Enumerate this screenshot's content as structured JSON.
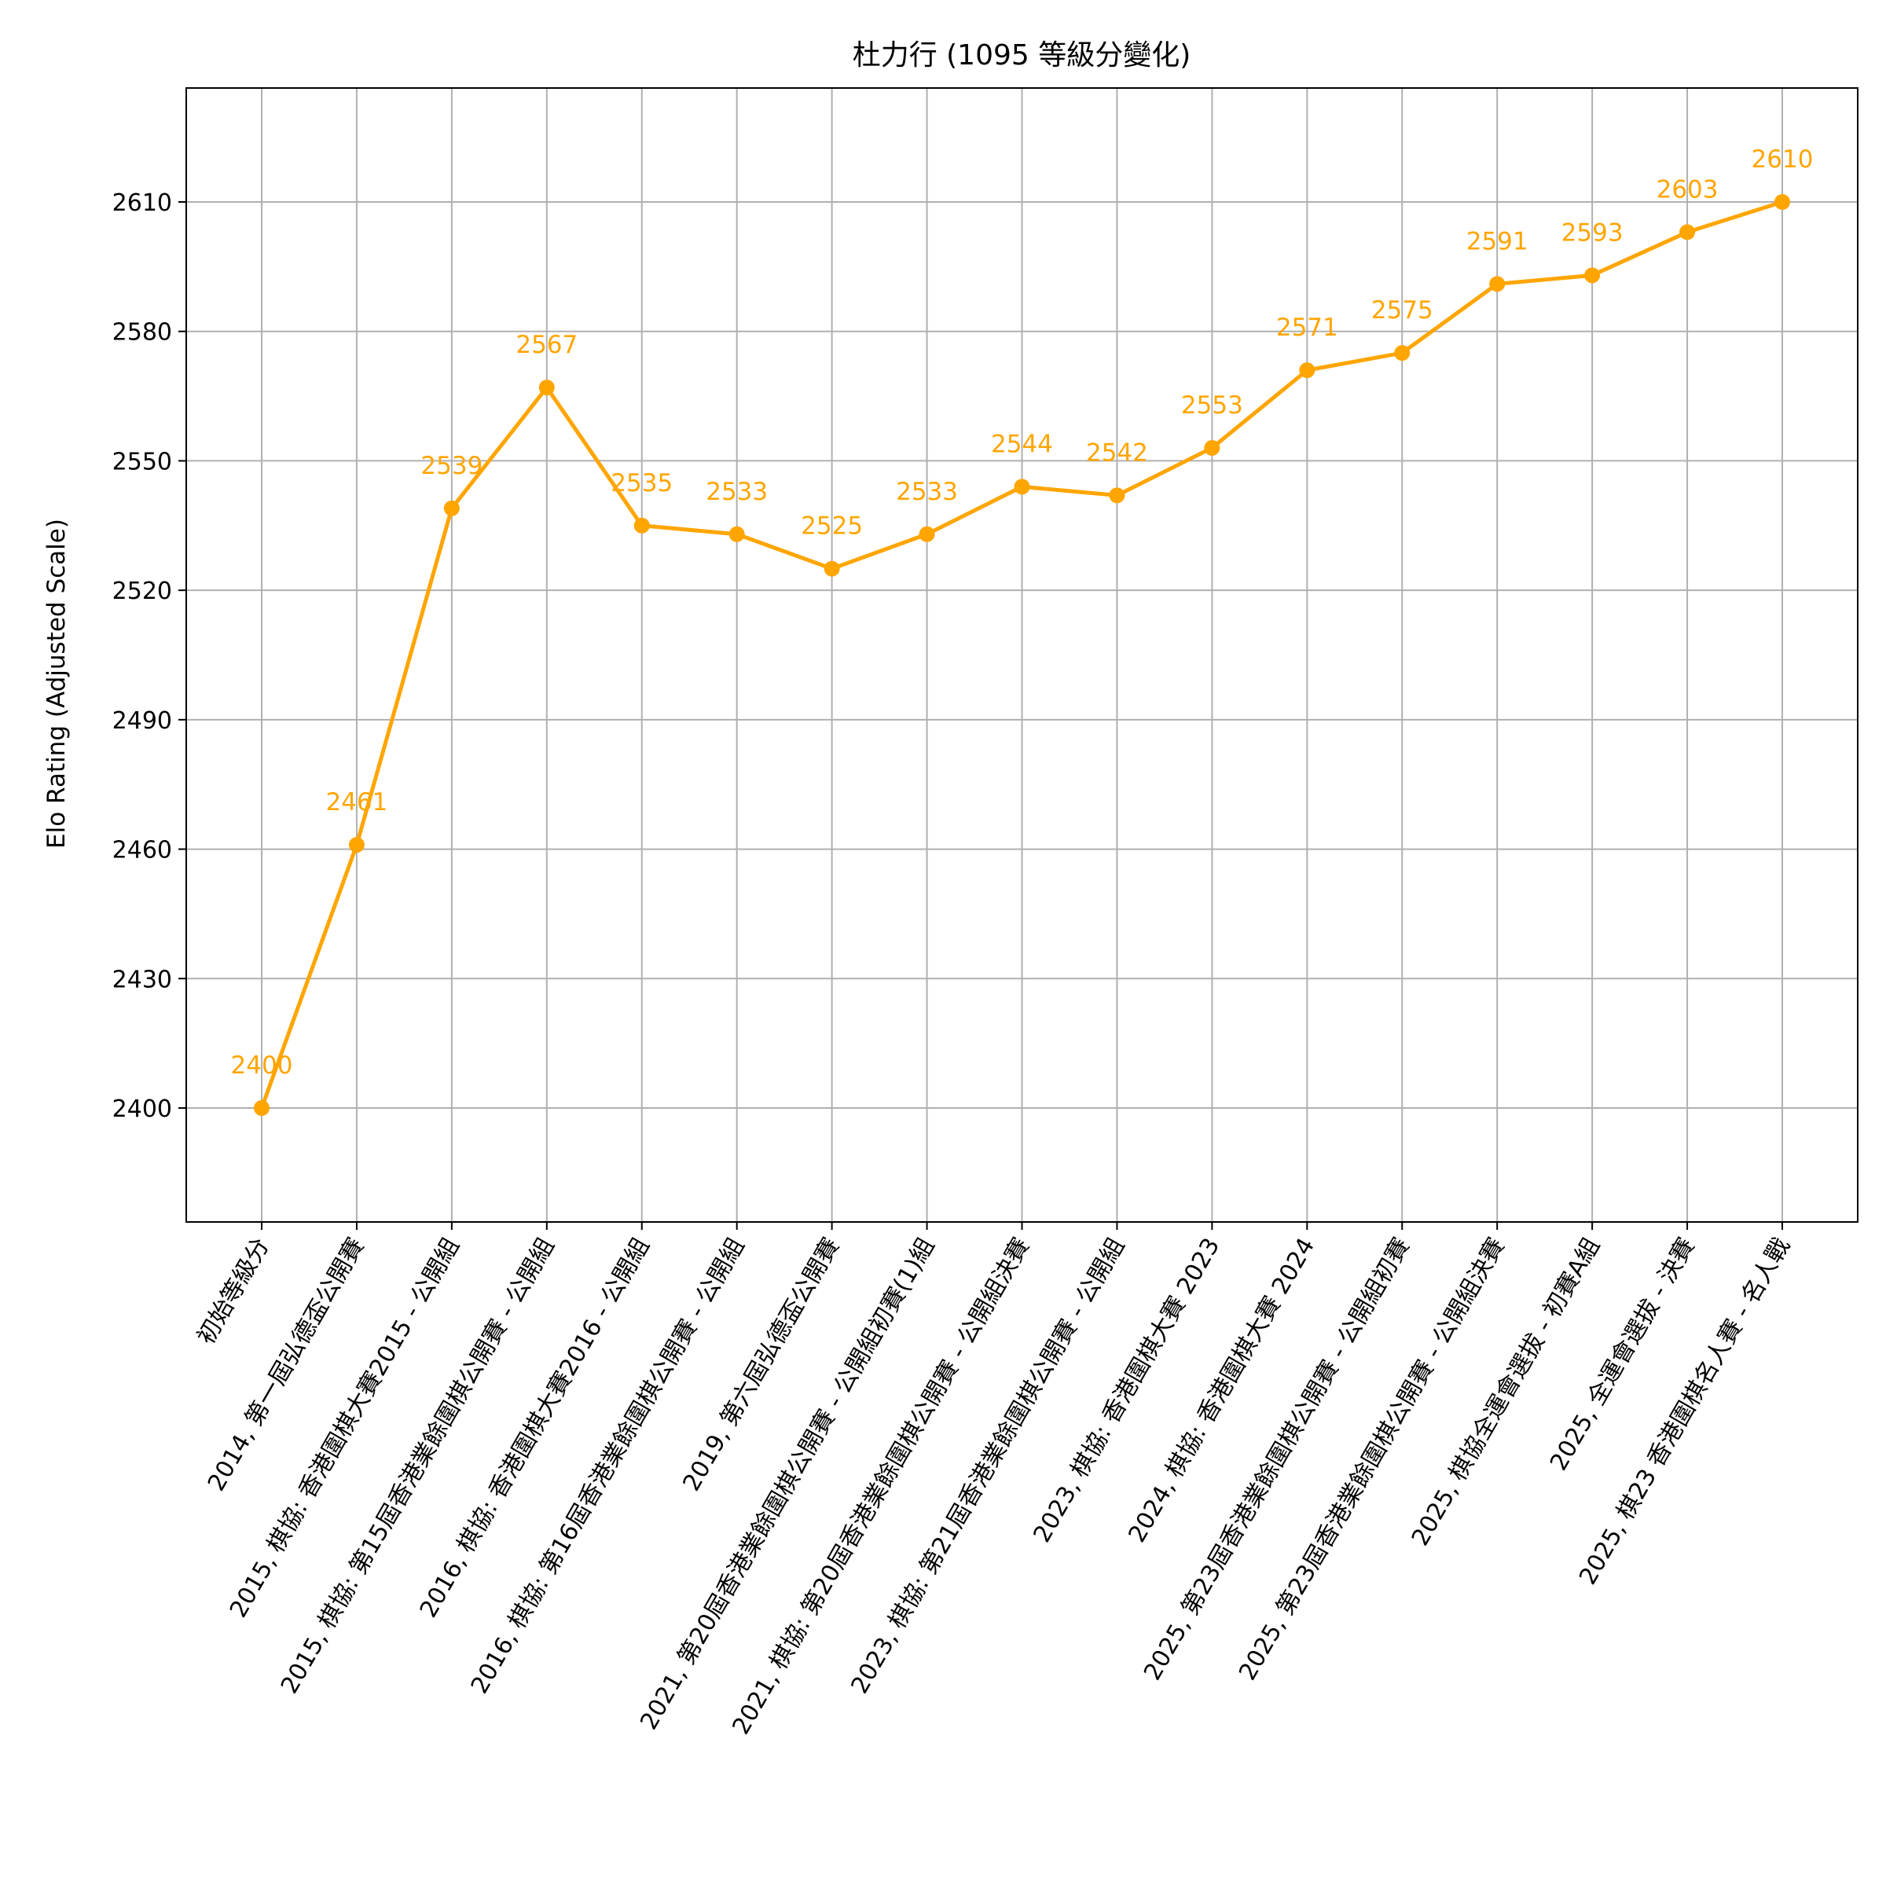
{
  "chart_data": {
    "type": "line",
    "title": "杜力行 (1095 等級分變化)",
    "ylabel": "Elo Rating (Adjusted Scale)",
    "xlabel": "",
    "grid": true,
    "line_color": "#FFA500",
    "y_ticks": [
      2400,
      2430,
      2460,
      2490,
      2520,
      2550,
      2580,
      2610
    ],
    "categories": [
      "初始等級分",
      "2014, 第一屆弘德盃公開賽",
      "2015, 棋協: 香港圍棋大賽2015 - 公開組",
      "2015, 棋協: 第15屆香港業餘圍棋公開賽 - 公開組",
      "2016, 棋協: 香港圍棋大賽2016 - 公開組",
      "2016, 棋協: 第16屆香港業餘圍棋公開賽 - 公開組",
      "2019, 第六屆弘德盃公開賽",
      "2021, 第20屆香港業餘圍棋公開賽 - 公開組初賽(1)組",
      "2021, 棋協: 第20屆香港業餘圍棋公開賽 - 公開組決賽",
      "2023, 棋協: 第21屆香港業餘圍棋公開賽 - 公開組",
      "2023, 棋協: 香港圍棋大賽 2023",
      "2024, 棋協: 香港圍棋大賽 2024",
      "2025, 第23屆香港業餘圍棋公開賽 - 公開組初賽",
      "2025, 第23屆香港業餘圍棋公開賽 - 公開組決賽",
      "2025, 棋協全運會選拔 - 初賽A組",
      "2025, 全運會選拔 - 決賽",
      "2025, 棋23 香港圍棋名人賽 - 名人戰"
    ],
    "series": [
      {
        "values": [
          2400,
          2461,
          2539,
          2567,
          2535,
          2533,
          2525,
          2533,
          2544,
          2542,
          2553,
          2571,
          2575,
          2591,
          2593,
          2603,
          2610
        ]
      }
    ]
  }
}
